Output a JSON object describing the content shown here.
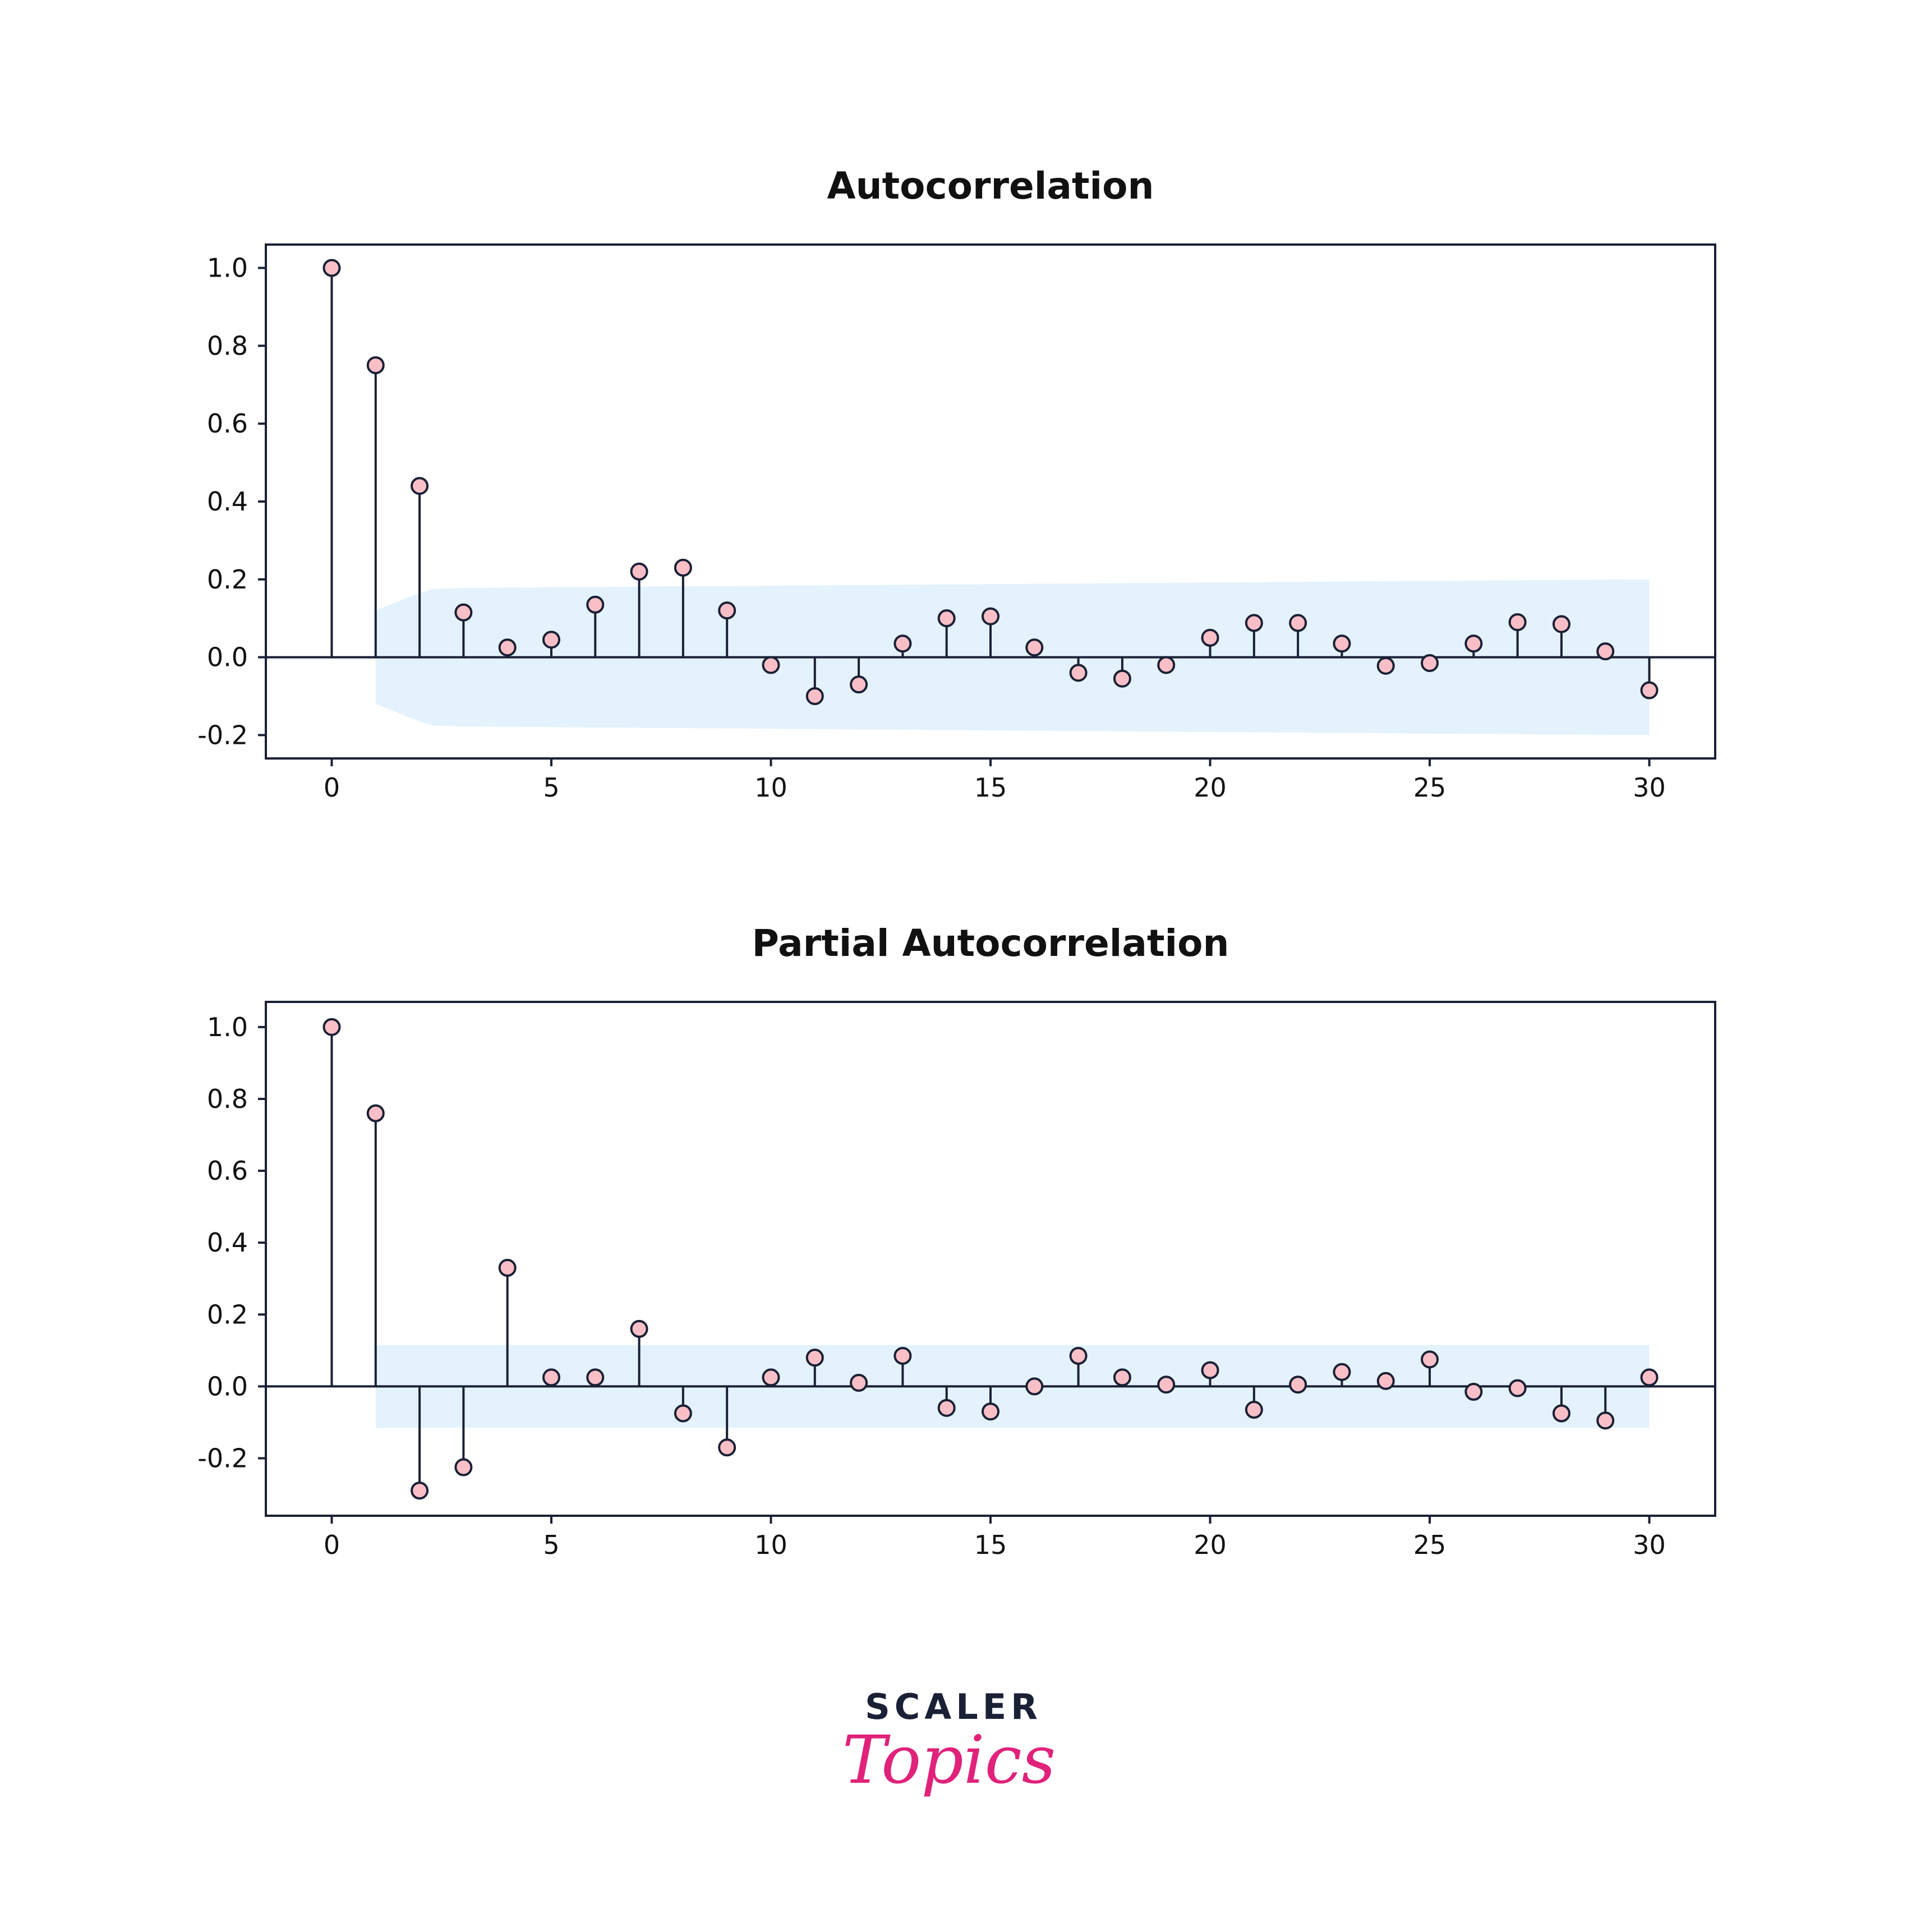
{
  "colors": {
    "background": "#ffffff",
    "axes": "#1a2035",
    "marker_fill": "#f9bfc7",
    "confidence_band": "#e3f2fd",
    "logo_dark": "#1a2035",
    "logo_accent": "#e0227a"
  },
  "logo": {
    "line1": "SCALER",
    "line2": "Topics"
  },
  "chart_data": [
    {
      "type": "stem",
      "title": "Autocorrelation",
      "xlabel": "",
      "ylabel": "",
      "xlim": [
        -1.5,
        31.5
      ],
      "ylim": [
        -0.26,
        1.06
      ],
      "xticks": [
        0,
        5,
        10,
        15,
        20,
        25,
        30
      ],
      "yticks": [
        -0.2,
        0.0,
        0.2,
        0.4,
        0.6,
        0.8,
        1.0
      ],
      "ytick_labels": [
        "-0.2",
        "0.0",
        "0.2",
        "0.4",
        "0.6",
        "0.8",
        "1.0"
      ],
      "grid": false,
      "x": [
        0,
        1,
        2,
        3,
        4,
        5,
        6,
        7,
        8,
        9,
        10,
        11,
        12,
        13,
        14,
        15,
        16,
        17,
        18,
        19,
        20,
        21,
        22,
        23,
        24,
        25,
        26,
        27,
        28,
        29,
        30
      ],
      "values": [
        1.0,
        0.75,
        0.44,
        0.115,
        0.025,
        0.045,
        0.135,
        0.22,
        0.23,
        0.12,
        -0.02,
        -0.1,
        -0.07,
        0.035,
        0.1,
        0.105,
        0.025,
        -0.04,
        -0.055,
        -0.02,
        0.05,
        0.088,
        0.088,
        0.035,
        -0.022,
        -0.015,
        0.035,
        0.09,
        0.085,
        0.015,
        -0.085
      ],
      "confidence_band": {
        "x": [
          1,
          2,
          2.3,
          3,
          30
        ],
        "upper": [
          0.12,
          0.165,
          0.175,
          0.178,
          0.2
        ]
      }
    },
    {
      "type": "stem",
      "title": "Partial Autocorrelation",
      "xlabel": "",
      "ylabel": "",
      "xlim": [
        -1.5,
        31.5
      ],
      "ylim": [
        -0.36,
        1.07
      ],
      "xticks": [
        0,
        5,
        10,
        15,
        20,
        25,
        30
      ],
      "yticks": [
        -0.2,
        0.0,
        0.2,
        0.4,
        0.6,
        0.8,
        1.0
      ],
      "ytick_labels": [
        "-0.2",
        "0.0",
        "0.2",
        "0.4",
        "0.6",
        "0.8",
        "1.0"
      ],
      "grid": false,
      "x": [
        0,
        1,
        2,
        3,
        4,
        5,
        6,
        7,
        8,
        9,
        10,
        11,
        12,
        13,
        14,
        15,
        16,
        17,
        18,
        19,
        20,
        21,
        22,
        23,
        24,
        25,
        26,
        27,
        28,
        29,
        30
      ],
      "values": [
        1.0,
        0.76,
        -0.29,
        -0.225,
        0.33,
        0.025,
        0.025,
        0.16,
        -0.075,
        -0.17,
        0.025,
        0.08,
        0.01,
        0.085,
        -0.06,
        -0.07,
        0.0,
        0.085,
        0.025,
        0.005,
        0.045,
        -0.065,
        0.005,
        0.04,
        0.015,
        0.075,
        -0.015,
        -0.005,
        -0.075,
        -0.095,
        0.025
      ],
      "confidence_band": {
        "x": [
          1,
          30
        ],
        "upper": [
          0.115,
          0.115
        ]
      }
    }
  ]
}
